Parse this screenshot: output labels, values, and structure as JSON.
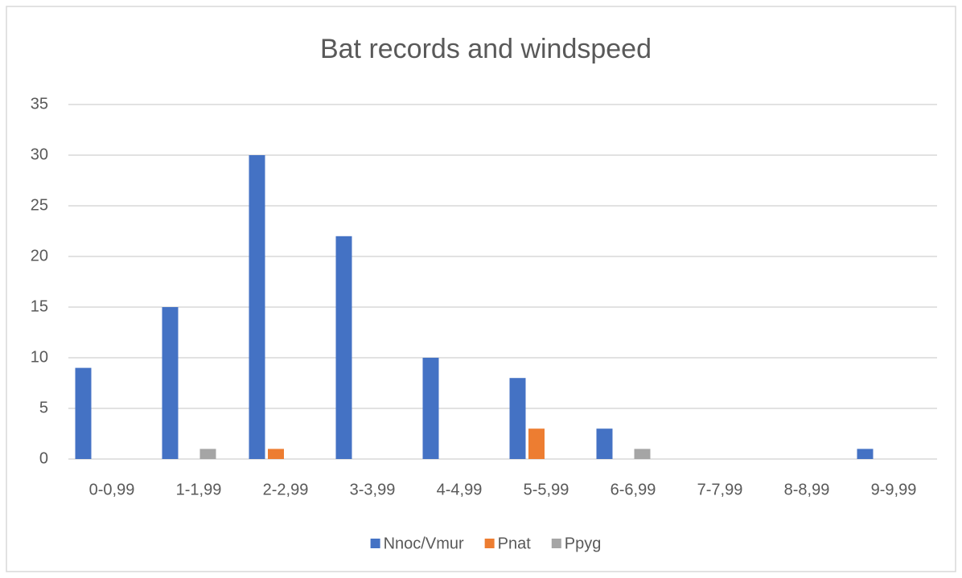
{
  "chart_data": {
    "type": "bar",
    "title": "Bat records and windspeed",
    "categories": [
      "0-0,99",
      "1-1,99",
      "2-2,99",
      "3-3,99",
      "4-4,99",
      "5-5,99",
      "6-6,99",
      "7-7,99",
      "8-8,99",
      "9-9,99"
    ],
    "series": [
      {
        "name": "Nnoc/Vmur",
        "color": "#4472c4",
        "values": [
          9,
          15,
          30,
          22,
          10,
          8,
          3,
          0,
          0,
          1
        ]
      },
      {
        "name": "Pnat",
        "color": "#ed7d31",
        "values": [
          0,
          0,
          1,
          0,
          0,
          3,
          0,
          0,
          0,
          0
        ]
      },
      {
        "name": "Ppyg",
        "color": "#a5a5a5",
        "values": [
          0,
          1,
          0,
          0,
          0,
          0,
          1,
          0,
          0,
          0
        ]
      }
    ],
    "ylim": [
      0,
      35
    ],
    "yticks": [
      0,
      5,
      10,
      15,
      20,
      25,
      30,
      35
    ],
    "grid": true,
    "legend": "bottom"
  }
}
